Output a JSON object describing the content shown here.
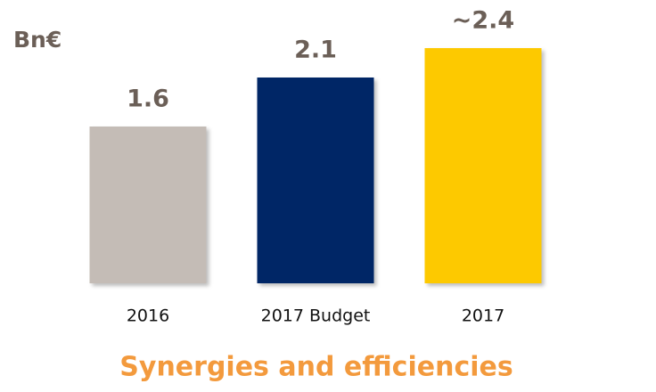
{
  "chart_data": {
    "type": "bar",
    "title": "Synergies and efficiencies",
    "unit_label": "Bn€",
    "categories": [
      "2016",
      "2017 Budget",
      "2017"
    ],
    "values": [
      1.6,
      2.1,
      2.4
    ],
    "value_labels": [
      "1.6",
      "2.1",
      "~2.4"
    ],
    "colors": [
      "#c4bcb6",
      "#062566",
      "#fdc900"
    ],
    "ylim": [
      0,
      2.4
    ],
    "grid": false
  }
}
